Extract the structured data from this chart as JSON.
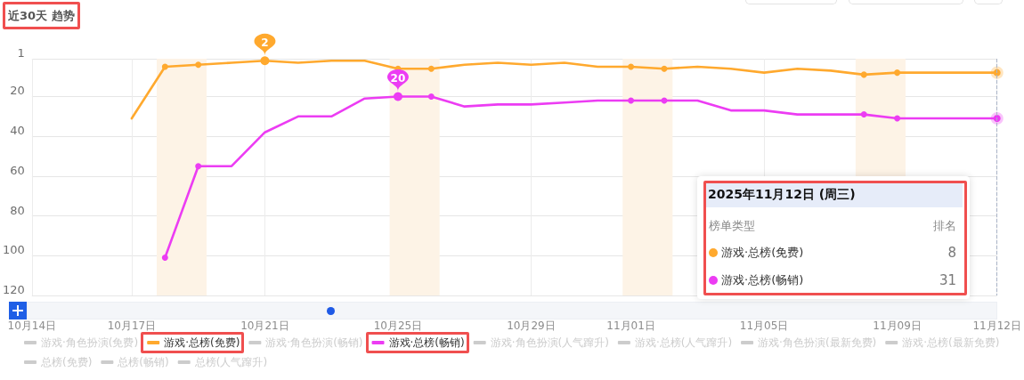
{
  "chart_data": {
    "type": "line",
    "title": "近30天 趋势",
    "x": [
      "2025-10-17",
      "2025-10-18",
      "2025-10-19",
      "2025-10-20",
      "2025-10-21",
      "2025-10-22",
      "2025-10-23",
      "2025-10-24",
      "2025-10-25",
      "2025-10-26",
      "2025-10-27",
      "2025-10-28",
      "2025-10-29",
      "2025-10-30",
      "2025-10-31",
      "2025-11-01",
      "2025-11-02",
      "2025-11-03",
      "2025-11-04",
      "2025-11-05",
      "2025-11-06",
      "2025-11-07",
      "2025-11-08",
      "2025-11-09",
      "2025-11-10",
      "2025-11-11",
      "2025-11-12"
    ],
    "xlim": [
      "2025-10-14",
      "2025-11-12"
    ],
    "xticks": [
      {
        "value": "2025-10-14",
        "label": "10月14日"
      },
      {
        "value": "2025-10-17",
        "label": "10月17日"
      },
      {
        "value": "2025-10-21",
        "label": "10月21日"
      },
      {
        "value": "2025-10-25",
        "label": "10月25日"
      },
      {
        "value": "2025-10-29",
        "label": "10月29日"
      },
      {
        "value": "2025-11-01",
        "label": "11月01日"
      },
      {
        "value": "2025-11-05",
        "label": "11月05日"
      },
      {
        "value": "2025-11-09",
        "label": "11月09日"
      },
      {
        "value": "2025-11-12",
        "label": "11月12日"
      }
    ],
    "ylim": [
      120,
      1
    ],
    "yticks": [
      1,
      20,
      40,
      60,
      80,
      100,
      120
    ],
    "grid": true,
    "legend": "bottom",
    "series": [
      {
        "name": "游戏·角色扮演(免费)",
        "values": [
          null,
          null,
          null,
          null,
          null,
          null,
          null,
          null,
          null,
          null,
          null,
          null,
          null,
          null,
          null,
          null,
          null,
          null,
          null,
          null,
          null,
          null,
          null,
          null,
          null,
          null,
          null
        ]
      },
      {
        "name": "游戏·总榜(免费)",
        "color": "#ffa92e",
        "values": [
          31,
          5,
          4,
          3,
          2,
          3,
          2,
          2,
          6,
          6,
          4,
          3,
          4,
          3,
          5,
          5,
          6,
          5,
          6,
          8,
          6,
          7,
          9,
          8,
          8,
          8,
          8
        ],
        "value_labels": [
          null,
          null,
          null,
          null,
          "2",
          null,
          null,
          null,
          null,
          null,
          null,
          null,
          null,
          null,
          null,
          null,
          null,
          null,
          null,
          null,
          null,
          null,
          null,
          null,
          null,
          null,
          null
        ]
      },
      {
        "name": "游戏·角色扮演(畅销)",
        "values": [
          null,
          null,
          null,
          null,
          null,
          null,
          null,
          null,
          null,
          null,
          null,
          null,
          null,
          null,
          null,
          null,
          null,
          null,
          null,
          null,
          null,
          null,
          null,
          null,
          null,
          null,
          null
        ]
      },
      {
        "name": "游戏·总榜(畅销)",
        "color": "#ec3cf3",
        "values": [
          null,
          101,
          55,
          55,
          38,
          30,
          30,
          21,
          20,
          20,
          25,
          24,
          24,
          23,
          22,
          22,
          22,
          22,
          27,
          27,
          29,
          29,
          29,
          31,
          31,
          31,
          31
        ],
        "value_labels": [
          null,
          null,
          null,
          null,
          null,
          null,
          null,
          null,
          "20",
          null,
          null,
          null,
          null,
          null,
          null,
          null,
          null,
          null,
          null,
          null,
          null,
          null,
          null,
          null,
          null,
          null,
          null
        ]
      },
      {
        "name": "游戏·角色扮演(人气蹿升)",
        "values": [
          null,
          null,
          null,
          null,
          null,
          null,
          null,
          null,
          null,
          null,
          null,
          null,
          null,
          null,
          null,
          null,
          null,
          null,
          null,
          null,
          null,
          null,
          null,
          null,
          null,
          null,
          null
        ]
      },
      {
        "name": "游戏·总榜(人气蹿升)",
        "values": [
          null,
          null,
          null,
          null,
          null,
          null,
          null,
          null,
          null,
          null,
          null,
          null,
          null,
          null,
          null,
          null,
          null,
          null,
          null,
          null,
          null,
          null,
          null,
          null,
          null,
          null,
          null
        ]
      },
      {
        "name": "游戏·角色扮演(最新免费)",
        "values": [
          null,
          null,
          null,
          null,
          null,
          null,
          null,
          null,
          null,
          null,
          null,
          null,
          null,
          null,
          null,
          null,
          null,
          null,
          null,
          null,
          null,
          null,
          null,
          null,
          null,
          null,
          null
        ]
      },
      {
        "name": "游戏·总榜(最新免费)",
        "values": [
          null,
          null,
          null,
          null,
          null,
          null,
          null,
          null,
          null,
          null,
          null,
          null,
          null,
          null,
          null,
          null,
          null,
          null,
          null,
          null,
          null,
          null,
          null,
          null,
          null,
          null,
          null
        ]
      },
      {
        "name": "总榜(免费)",
        "values": [
          null,
          null,
          null,
          null,
          null,
          null,
          null,
          null,
          null,
          null,
          null,
          null,
          null,
          null,
          null,
          null,
          null,
          null,
          null,
          null,
          null,
          null,
          null,
          null,
          null,
          null,
          null
        ]
      },
      {
        "name": "总榜(畅销)",
        "values": [
          null,
          null,
          null,
          null,
          null,
          null,
          null,
          null,
          null,
          null,
          null,
          null,
          null,
          null,
          null,
          null,
          null,
          null,
          null,
          null,
          null,
          null,
          null,
          null,
          null,
          null,
          null
        ]
      },
      {
        "name": "总榜(人气蹿升)",
        "values": [
          null,
          null,
          null,
          null,
          null,
          null,
          null,
          null,
          null,
          null,
          null,
          null,
          null,
          null,
          null,
          null,
          null,
          null,
          null,
          null,
          null,
          null,
          null,
          null,
          null,
          null,
          null
        ]
      }
    ],
    "bands": [
      {
        "axis": "x",
        "from": "2025-10-17T18:00",
        "to": "2025-10-19T06:00",
        "color": "#fdf3e6"
      },
      {
        "axis": "x",
        "from": "2025-10-24T18:00",
        "to": "2025-10-26T06:00",
        "color": "#fdf3e6"
      },
      {
        "axis": "x",
        "from": "2025-10-31T18:00",
        "to": "2025-11-02T06:00",
        "color": "#fdf3e6"
      },
      {
        "axis": "x",
        "from": "2025-11-07T18:00",
        "to": "2025-11-09T06:00",
        "color": "#fdf3e6"
      }
    ],
    "ref_lines": [
      {
        "axis": "x",
        "value": "2025-11-12",
        "color": "#a9b3c6",
        "line_style": "dashed"
      }
    ],
    "annotations": [
      "2025年11月12日 (周三)",
      "榜单类型",
      "排名",
      "8",
      "31"
    ]
  }
}
